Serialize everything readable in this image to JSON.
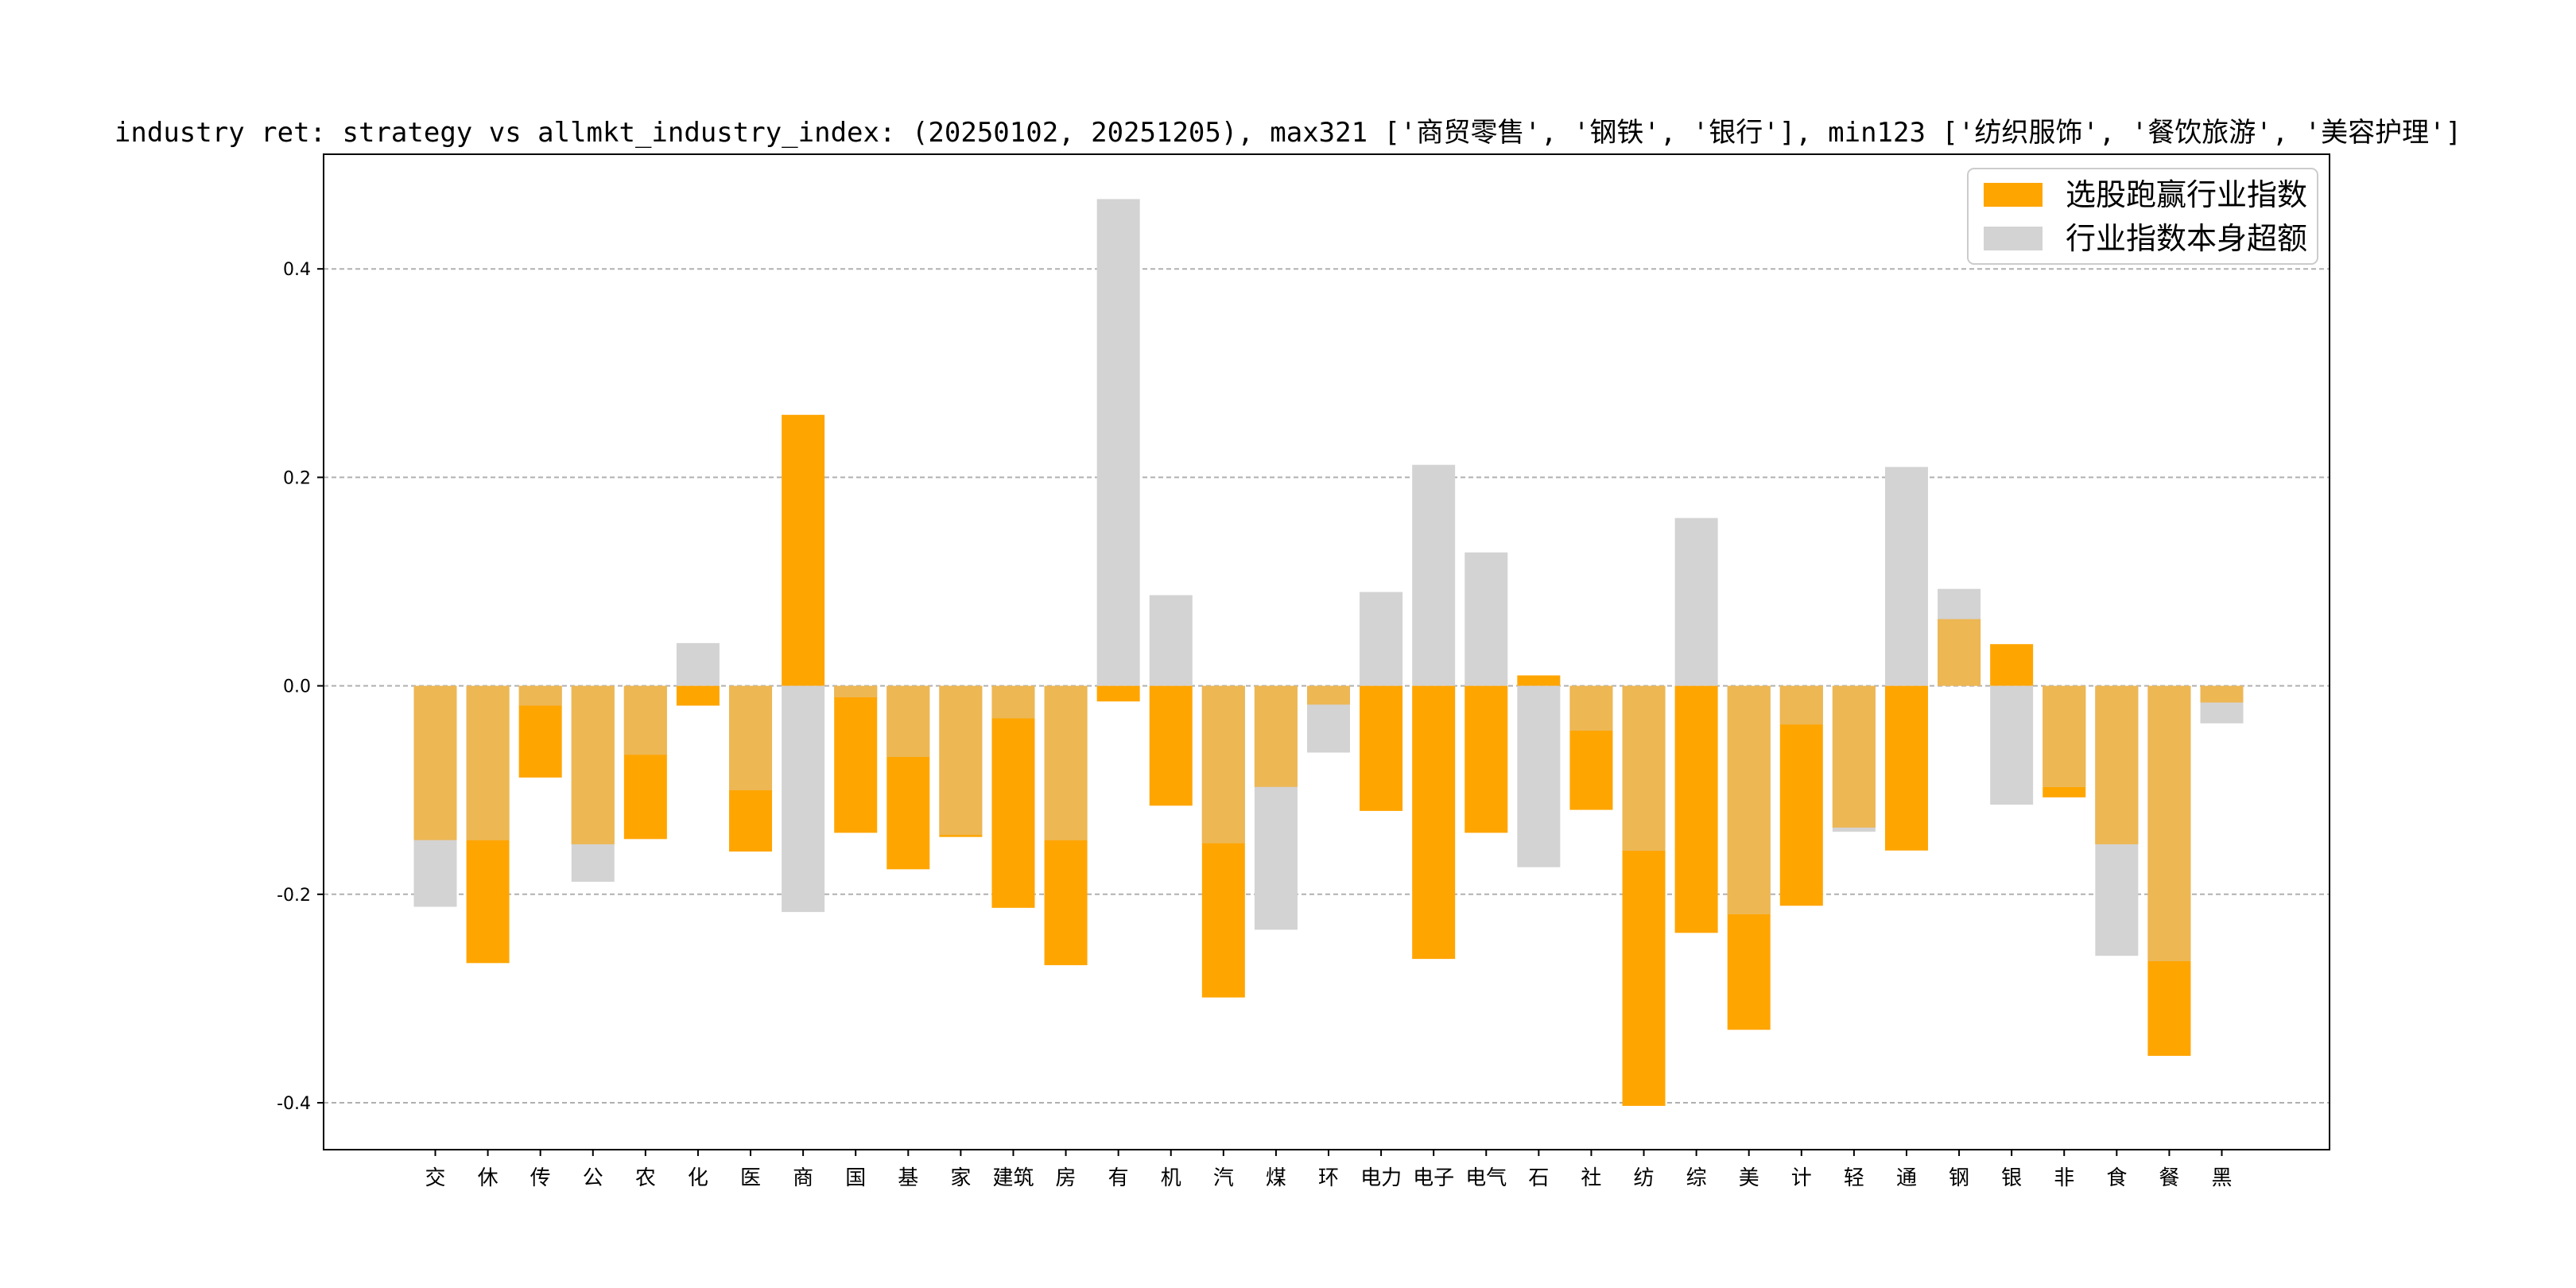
{
  "chart_data": {
    "type": "bar",
    "title": "industry ret: strategy vs allmkt_industry_index: (20250102, 20251205), max321 ['商贸零售', '钢铁', '银行'], min123 ['纺织服饰', '餐饮旅游', '美容护理']",
    "xlabel": "",
    "ylabel": "",
    "ylim": [
      -0.445,
      0.51
    ],
    "yticks": [
      -0.4,
      -0.2,
      0.0,
      0.2,
      0.4
    ],
    "ytick_labels": [
      "-0.4",
      "-0.2",
      "0.0",
      "0.2",
      "0.4"
    ],
    "grid": "horizontal dashed",
    "legend_position": "top-right",
    "categories": [
      "交",
      "休",
      "传",
      "公",
      "农",
      "化",
      "医",
      "商",
      "国",
      "基",
      "家",
      "建筑",
      "房",
      "有",
      "机",
      "汽",
      "煤",
      "环",
      "电力",
      "电子",
      "电气",
      "石",
      "社",
      "纺",
      "综",
      "美",
      "计",
      "轻",
      "通",
      "钢",
      "银",
      "非",
      "食",
      "餐",
      "黑"
    ],
    "series": [
      {
        "name": "选股跑赢行业指数",
        "color": "#ffa500",
        "values": [
          -0.148,
          -0.266,
          -0.088,
          -0.152,
          -0.147,
          -0.019,
          -0.159,
          0.26,
          -0.141,
          -0.176,
          -0.145,
          -0.213,
          -0.268,
          -0.015,
          -0.115,
          -0.299,
          -0.097,
          -0.018,
          -0.12,
          -0.262,
          -0.141,
          0.01,
          -0.119,
          -0.403,
          -0.237,
          -0.33,
          -0.211,
          -0.136,
          -0.158,
          0.064,
          0.04,
          -0.107,
          -0.152,
          -0.355,
          -0.016
        ]
      },
      {
        "name": "行业指数本身超额",
        "color": "#d3d3d3",
        "values": [
          -0.212,
          -0.148,
          -0.019,
          -0.188,
          -0.066,
          0.041,
          -0.1,
          -0.217,
          -0.011,
          -0.068,
          -0.143,
          -0.031,
          -0.148,
          0.467,
          0.087,
          -0.151,
          -0.234,
          -0.064,
          0.09,
          0.212,
          0.128,
          -0.174,
          -0.043,
          -0.158,
          0.161,
          -0.219,
          -0.037,
          -0.14,
          0.21,
          0.093,
          -0.114,
          -0.097,
          -0.259,
          -0.264,
          -0.036
        ]
      }
    ]
  }
}
